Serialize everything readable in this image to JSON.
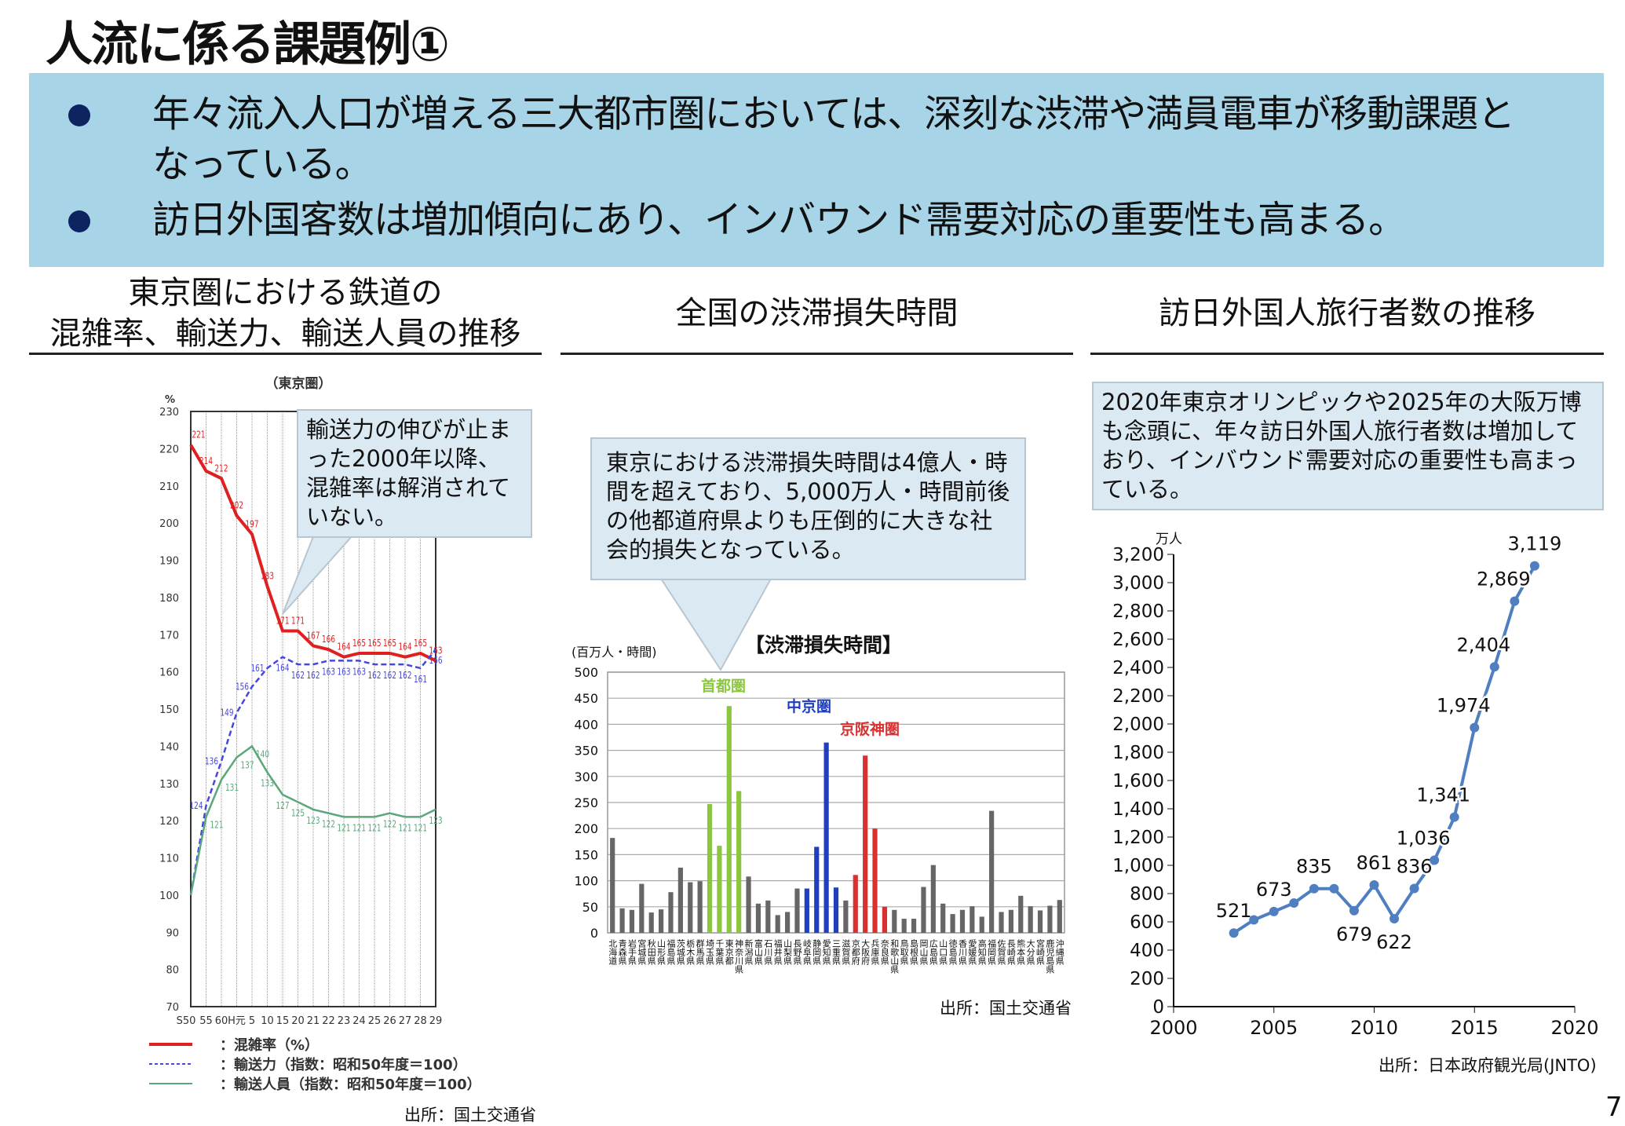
{
  "title": "人流に係る課題例①",
  "summary": {
    "bullets": [
      "年々流入人口が増える三大都市圏においては、深刻な渋滞や満員電車が移動課題と",
      "なっている。",
      "訪日外国客数は増加傾向にあり、インバウンド需要対応の重要性も高まる。"
    ]
  },
  "sections": {
    "left": {
      "heading_line1": "東京圏における鉄道の",
      "heading_line2": "混雑率、輸送力、輸送人員の推移",
      "callout": "輸送力の伸びが止まった2000年以降、混雑率は解消されていない。",
      "source": "出所：国土交通省"
    },
    "middle": {
      "heading": "全国の渋滞損失時間",
      "callout": "東京における渋滞損失時間は4億人・時間を超えており、5,000万人・時間前後の他都道府県よりも圧倒的に大きな社会的損失となっている。",
      "source": "出所：国土交通省"
    },
    "right": {
      "heading": "訪日外国人旅行者数の推移",
      "callout": "2020年東京オリンピックや2025年の大阪万博も念頭に、年々訪日外国人旅行者数は増加しており、インバウンド需要対応の重要性も高まっている。",
      "source": "出所：日本政府観光局(JNTO)"
    }
  },
  "page_number": "7",
  "chart_data": [
    {
      "type": "line",
      "title": "（東京圏）",
      "ylabel": "%",
      "ylim": [
        70,
        230
      ],
      "yticks": [
        70,
        80,
        90,
        100,
        110,
        120,
        130,
        140,
        150,
        160,
        170,
        180,
        190,
        200,
        210,
        220,
        230
      ],
      "categories": [
        "S50",
        "55",
        "60",
        "H元",
        "5",
        "10",
        "15",
        "20",
        "21",
        "22",
        "23",
        "24",
        "25",
        "26",
        "27",
        "28",
        "29"
      ],
      "series": [
        {
          "name": "：混雑率（%）",
          "color": "#e02020",
          "style": "solid",
          "values": [
            221,
            214,
            212,
            202,
            197,
            183,
            171,
            171,
            167,
            166,
            164,
            165,
            165,
            165,
            164,
            165,
            163
          ]
        },
        {
          "name": "：輸送力（指数：昭和50年度＝100）",
          "color": "#4646e0",
          "style": "dashed",
          "values": [
            100,
            124,
            136,
            149,
            156,
            161,
            164,
            162,
            162,
            163,
            163,
            163,
            162,
            162,
            162,
            161,
            166
          ]
        },
        {
          "name": "：輸送人員（指数：昭和50年度＝100）",
          "color": "#5aa77a",
          "style": "solid",
          "values": [
            100,
            121,
            131,
            137,
            140,
            133,
            127,
            125,
            123,
            122,
            121,
            121,
            121,
            122,
            121,
            121,
            123
          ]
        }
      ],
      "grid": true,
      "legend": "bottom"
    },
    {
      "type": "bar",
      "title": "【渋滞損失時間】",
      "ylabel": "(百万人・時間)",
      "ylim": [
        0,
        500
      ],
      "yticks": [
        0,
        50,
        100,
        150,
        200,
        250,
        300,
        350,
        400,
        450,
        500
      ],
      "categories": [
        "北海道",
        "青森県",
        "岩手県",
        "宮城県",
        "秋田県",
        "山形県",
        "福島県",
        "茨城県",
        "栃木県",
        "群馬県",
        "埼玉県",
        "千葉県",
        "東京都",
        "神奈川県",
        "新潟県",
        "富山県",
        "石川県",
        "福井県",
        "山梨県",
        "長野県",
        "岐阜県",
        "静岡県",
        "愛知県",
        "三重県",
        "滋賀県",
        "京都府",
        "大阪府",
        "兵庫県",
        "奈良県",
        "和歌山県",
        "鳥取県",
        "島根県",
        "岡山県",
        "広島県",
        "山口県",
        "徳島県",
        "香川県",
        "愛媛県",
        "高知県",
        "福岡県",
        "佐賀県",
        "長崎県",
        "熊本県",
        "大分県",
        "宮崎県",
        "鹿児島県",
        "沖縄県"
      ],
      "values": [
        182,
        47,
        44,
        94,
        39,
        45,
        78,
        125,
        97,
        99,
        247,
        167,
        435,
        272,
        108,
        56,
        62,
        34,
        40,
        85,
        85,
        165,
        365,
        87,
        62,
        111,
        340,
        200,
        50,
        44,
        27,
        27,
        88,
        130,
        56,
        36,
        44,
        51,
        31,
        234,
        40,
        44,
        71,
        51,
        43,
        52,
        63
      ],
      "groups": [
        {
          "name": "首都圏",
          "color": "#8cc63f",
          "members": [
            10,
            11,
            12,
            13
          ]
        },
        {
          "name": "中京圏",
          "color": "#1f3fbf",
          "members": [
            20,
            21,
            22,
            23
          ]
        },
        {
          "name": "京阪神圏",
          "color": "#d93030",
          "members": [
            25,
            26,
            27,
            28
          ]
        }
      ],
      "grid": true
    },
    {
      "type": "line",
      "ylabel": "万人",
      "xlim": [
        2000,
        2020
      ],
      "ylim": [
        0,
        3200
      ],
      "xticks": [
        2000,
        2005,
        2010,
        2015,
        2020
      ],
      "yticks": [
        0,
        200,
        400,
        600,
        800,
        1000,
        1200,
        1400,
        1600,
        1800,
        2000,
        2200,
        2400,
        2600,
        2800,
        3000,
        3200
      ],
      "x": [
        2003,
        2004,
        2005,
        2006,
        2007,
        2008,
        2009,
        2010,
        2011,
        2012,
        2013,
        2014,
        2015,
        2016,
        2017,
        2018
      ],
      "values": [
        521,
        614,
        673,
        733,
        835,
        835,
        679,
        861,
        622,
        836,
        1036,
        1341,
        1974,
        2404,
        2869,
        3119
      ],
      "labels": [
        "521",
        "",
        "673",
        "",
        "835",
        "",
        "679",
        "861",
        "622",
        "836",
        "1,036",
        "1,341",
        "1,974",
        "2,404",
        "2,869",
        "3,119"
      ],
      "color": "#4f7fc0"
    }
  ]
}
